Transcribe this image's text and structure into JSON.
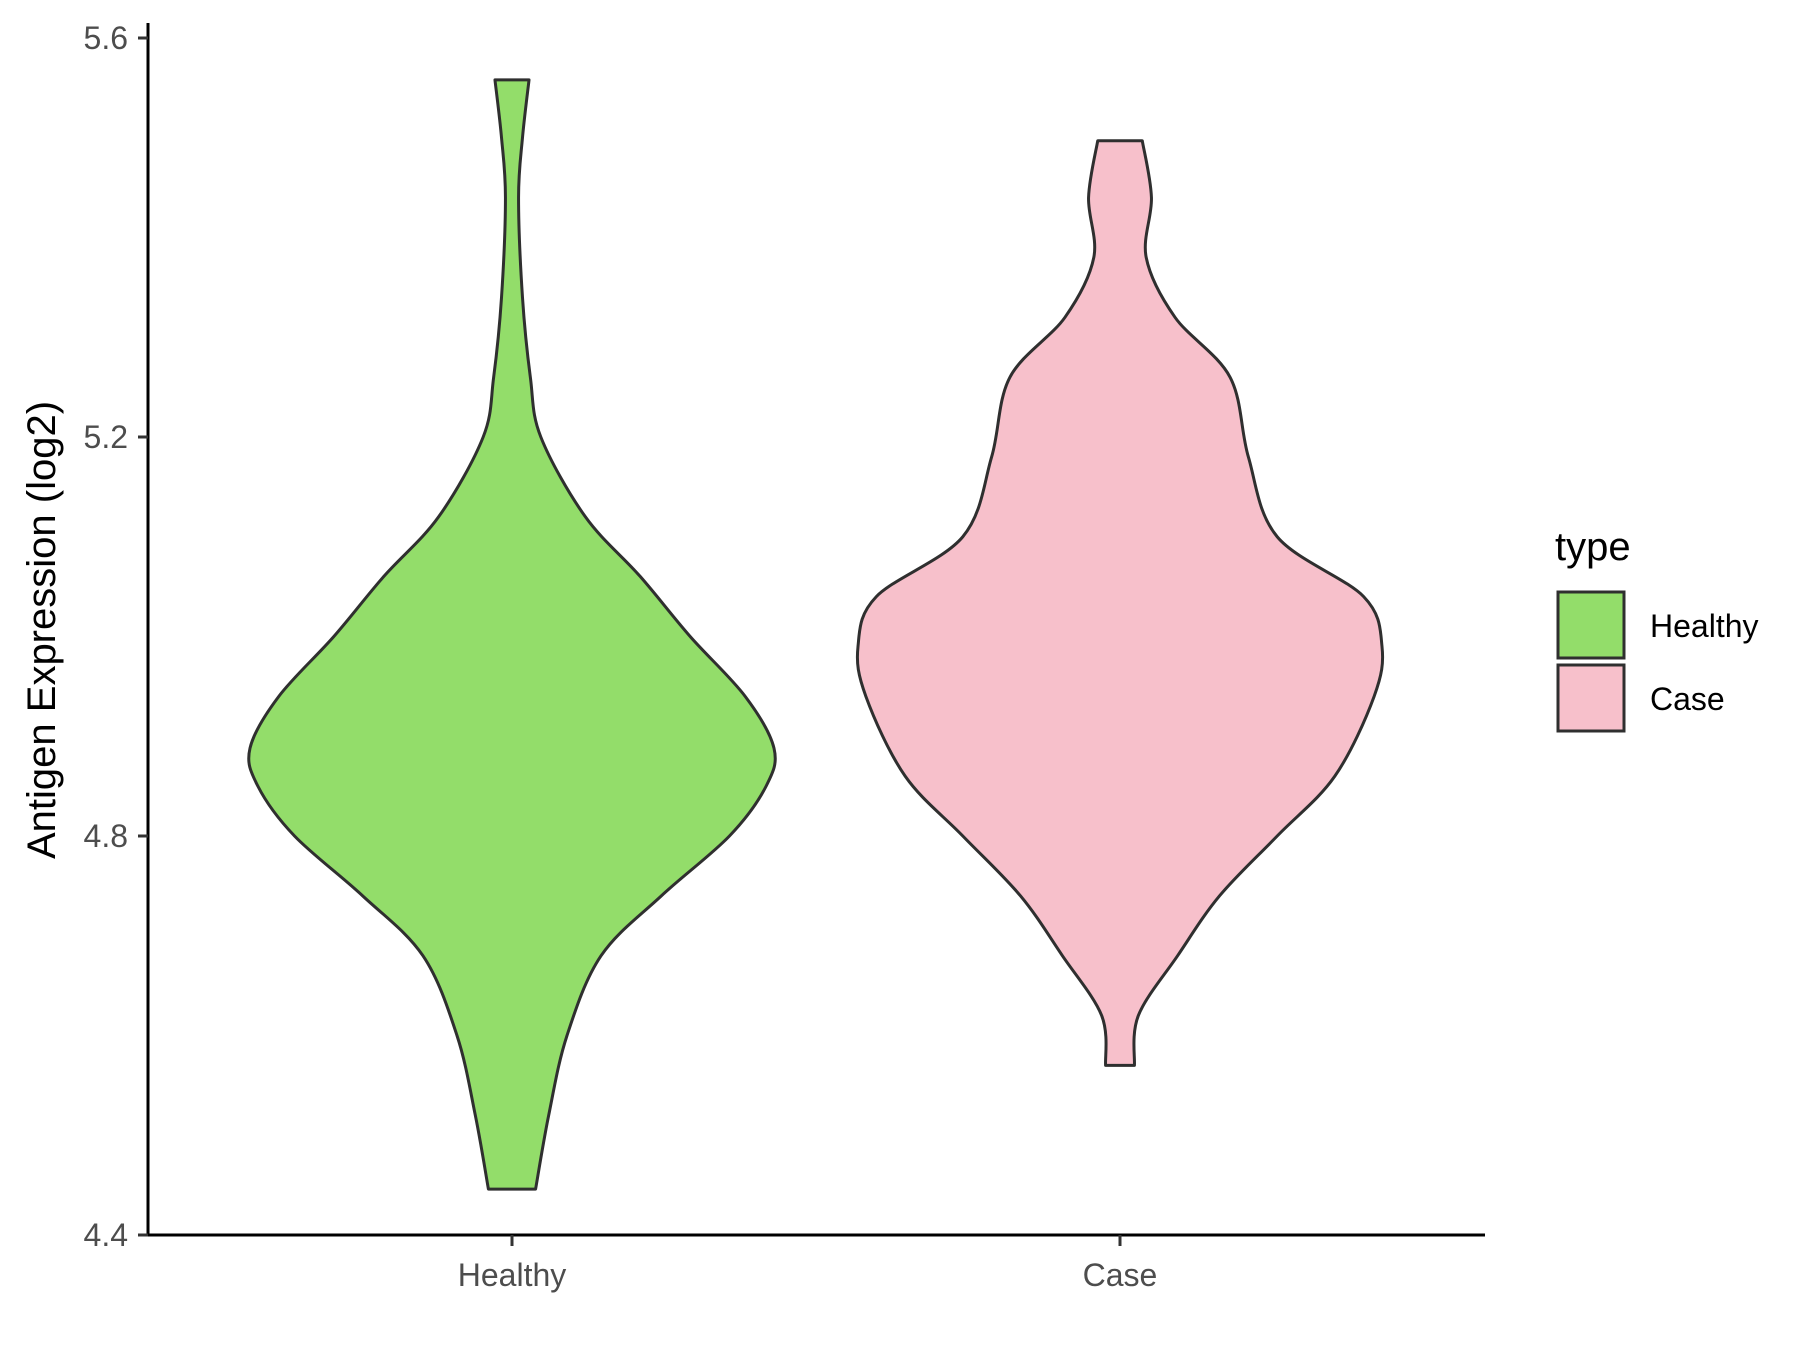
{
  "chart_data": {
    "type": "violin",
    "ylabel": "Antigen Expression (log2)",
    "ylim": [
      4.4,
      5.6
    ],
    "yticks": [
      "4.4",
      "4.8",
      "5.2",
      "5.6"
    ],
    "categories": [
      "Healthy",
      "Case"
    ],
    "grid": false,
    "legend": {
      "title": "type",
      "placement": "right",
      "entries": [
        "Healthy",
        "Case"
      ]
    },
    "series": [
      {
        "name": "Healthy",
        "color": "#93dd6a",
        "min": 4.446,
        "max": 5.558,
        "density": [
          {
            "y": 4.446,
            "w": 0.09
          },
          {
            "y": 4.52,
            "w": 0.14
          },
          {
            "y": 4.6,
            "w": 0.21
          },
          {
            "y": 4.68,
            "w": 0.34
          },
          {
            "y": 4.74,
            "w": 0.57
          },
          {
            "y": 4.8,
            "w": 0.83
          },
          {
            "y": 4.85,
            "w": 0.97
          },
          {
            "y": 4.888,
            "w": 1.0
          },
          {
            "y": 4.94,
            "w": 0.89
          },
          {
            "y": 5.0,
            "w": 0.68
          },
          {
            "y": 5.06,
            "w": 0.49
          },
          {
            "y": 5.12,
            "w": 0.28
          },
          {
            "y": 5.2,
            "w": 0.11
          },
          {
            "y": 5.26,
            "w": 0.07
          },
          {
            "y": 5.34,
            "w": 0.04
          },
          {
            "y": 5.44,
            "w": 0.025
          },
          {
            "y": 5.5,
            "w": 0.04
          },
          {
            "y": 5.558,
            "w": 0.065
          }
        ]
      },
      {
        "name": "Case",
        "color": "#f7c0cb",
        "min": 4.57,
        "max": 5.497,
        "density": [
          {
            "y": 4.57,
            "w": 0.055
          },
          {
            "y": 4.62,
            "w": 0.07
          },
          {
            "y": 4.68,
            "w": 0.22
          },
          {
            "y": 4.74,
            "w": 0.38
          },
          {
            "y": 4.8,
            "w": 0.6
          },
          {
            "y": 4.86,
            "w": 0.82
          },
          {
            "y": 4.94,
            "w": 0.97
          },
          {
            "y": 4.99,
            "w": 1.0
          },
          {
            "y": 5.04,
            "w": 0.93
          },
          {
            "y": 5.1,
            "w": 0.6
          },
          {
            "y": 5.18,
            "w": 0.49
          },
          {
            "y": 5.26,
            "w": 0.42
          },
          {
            "y": 5.32,
            "w": 0.21
          },
          {
            "y": 5.38,
            "w": 0.1
          },
          {
            "y": 5.44,
            "w": 0.12
          },
          {
            "y": 5.497,
            "w": 0.085
          }
        ]
      }
    ]
  }
}
